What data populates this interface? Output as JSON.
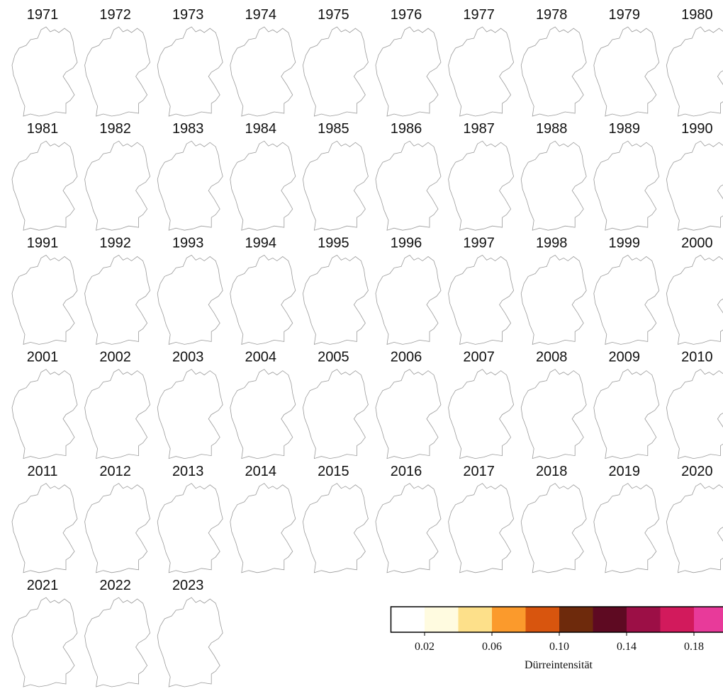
{
  "years": [
    "1971",
    "1972",
    "1973",
    "1974",
    "1975",
    "1976",
    "1977",
    "1978",
    "1979",
    "1980",
    "1981",
    "1982",
    "1983",
    "1984",
    "1985",
    "1986",
    "1987",
    "1988",
    "1989",
    "1990",
    "1991",
    "1992",
    "1993",
    "1994",
    "1995",
    "1996",
    "1997",
    "1998",
    "1999",
    "2000",
    "2001",
    "2002",
    "2003",
    "2004",
    "2005",
    "2006",
    "2007",
    "2008",
    "2009",
    "2010",
    "2011",
    "2012",
    "2013",
    "2014",
    "2015",
    "2016",
    "2017",
    "2018",
    "2019",
    "2020",
    "2021",
    "2022",
    "2023"
  ],
  "colorbar": {
    "label": "Dürreintensität",
    "lim": [
      0,
      0.2
    ],
    "ticks": [
      0.02,
      0.06,
      {
        "value": 0.1,
        "label": "0.10"
      },
      0.14,
      0.18
    ],
    "colors": [
      "#ffffff",
      "#fffbe0",
      "#fde08a",
      "#fb9a2c",
      "#d8550e",
      "#6e2a0c",
      "#5e0a22",
      "#9c0f46",
      "#d21a5c",
      "#e83a9a"
    ]
  }
}
